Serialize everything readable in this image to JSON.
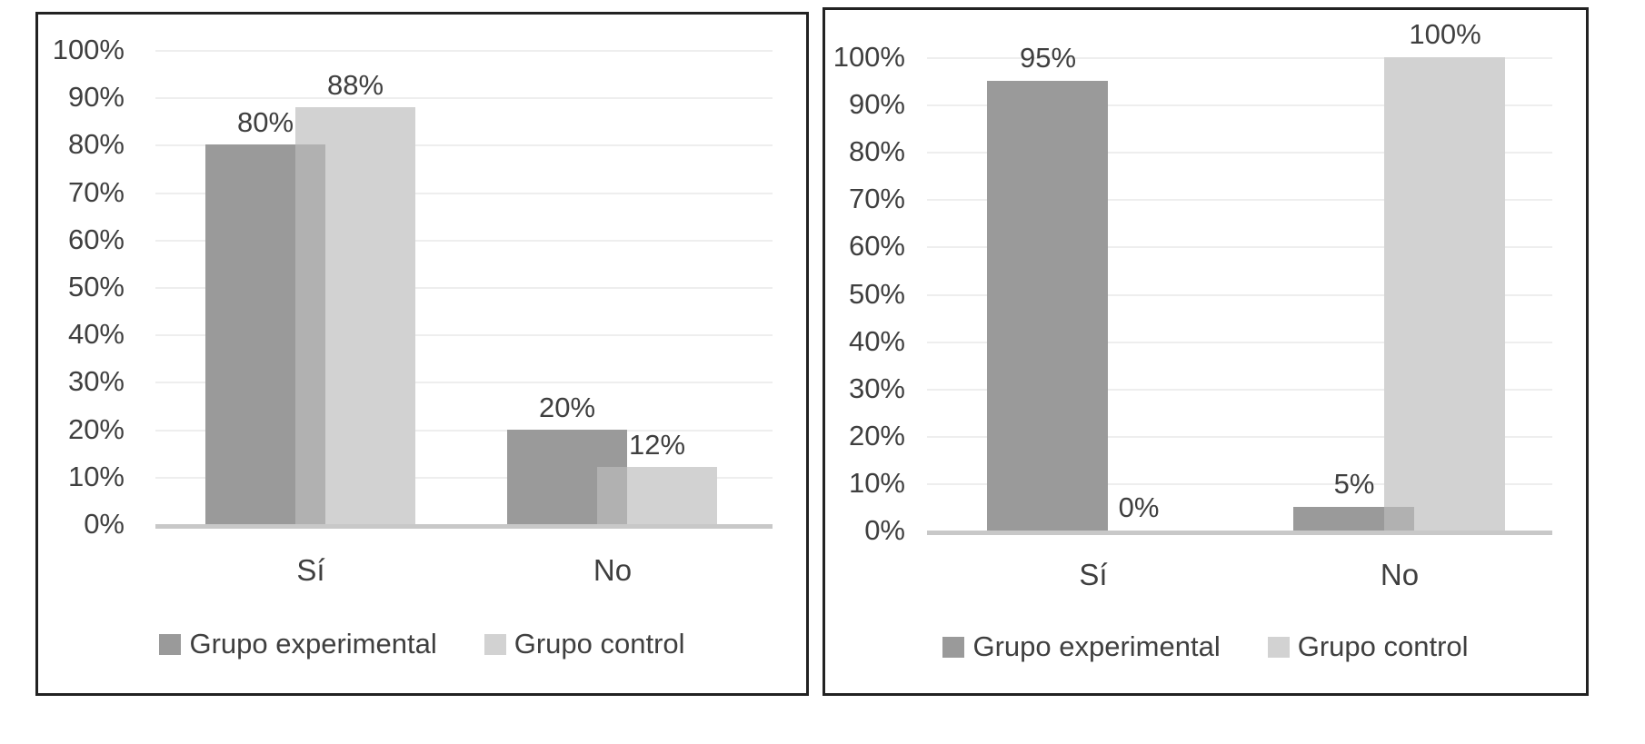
{
  "colors": {
    "series_dark": "#9a9a9a",
    "series_light": "#d2d2d2",
    "series_overlap": "#b1b1b1",
    "gridline": "#eeeeee",
    "axis_line": "#c8c8c8",
    "text": "#3f3f3f",
    "panel_border": "#222222",
    "background": "#ffffff"
  },
  "y_axis_ticks": [
    "100%",
    "90%",
    "80%",
    "70%",
    "60%",
    "50%",
    "40%",
    "30%",
    "20%",
    "10%",
    "0%"
  ],
  "chart_data": [
    {
      "type": "bar",
      "title": "",
      "xlabel": "",
      "ylabel": "",
      "ylim": [
        0,
        100
      ],
      "grid": true,
      "legend_position": "bottom",
      "categories": [
        "Sí",
        "No"
      ],
      "series": [
        {
          "name": "Grupo experimental",
          "color": "#9a9a9a",
          "values": [
            80,
            20
          ],
          "labels": [
            "80%",
            "20%"
          ]
        },
        {
          "name": "Grupo control",
          "color": "#d2d2d2",
          "values": [
            88,
            12
          ],
          "labels": [
            "88%",
            "12%"
          ]
        }
      ]
    },
    {
      "type": "bar",
      "title": "",
      "xlabel": "",
      "ylabel": "",
      "ylim": [
        0,
        100
      ],
      "grid": true,
      "legend_position": "bottom",
      "categories": [
        "Sí",
        "No"
      ],
      "series": [
        {
          "name": "Grupo experimental",
          "color": "#9a9a9a",
          "values": [
            95,
            5
          ],
          "labels": [
            "95%",
            "5%"
          ]
        },
        {
          "name": "Grupo control",
          "color": "#d2d2d2",
          "values": [
            0,
            100
          ],
          "labels": [
            "0%",
            "100%"
          ]
        }
      ]
    }
  ]
}
